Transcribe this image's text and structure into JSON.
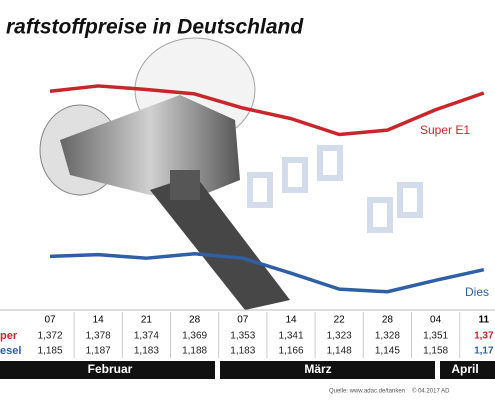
{
  "chart_data": {
    "type": "line",
    "title": "raftstoffpreise in Deutschland",
    "categories": [
      "07",
      "14",
      "21",
      "28",
      "07",
      "14",
      "22",
      "28",
      "04",
      "11"
    ],
    "series": [
      {
        "name": "Super E1",
        "row_label": "per",
        "color": "#c8262b",
        "values": [
          1.372,
          1.378,
          1.374,
          1.369,
          1.353,
          1.341,
          1.323,
          1.328,
          1.351,
          1.37
        ],
        "value_labels": [
          "1,372",
          "1,378",
          "1,374",
          "1,369",
          "1,353",
          "1,341",
          "1,323",
          "1,328",
          "1,351",
          "1,37"
        ]
      },
      {
        "name": "Dies",
        "row_label": "esel",
        "color": "#2f5fa6",
        "values": [
          1.185,
          1.187,
          1.183,
          1.188,
          1.183,
          1.166,
          1.148,
          1.145,
          1.158,
          1.17
        ],
        "value_labels": [
          "1,185",
          "1,187",
          "1,183",
          "1,188",
          "1,183",
          "1,166",
          "1,148",
          "1,145",
          "1,158",
          "1,17"
        ]
      }
    ],
    "months": [
      "Februar",
      "März",
      "April"
    ],
    "ylim": [
      1.13,
      1.43
    ],
    "source": "Quelle: www.adac.de/tanken",
    "credit": "© 04.2017  AD"
  }
}
